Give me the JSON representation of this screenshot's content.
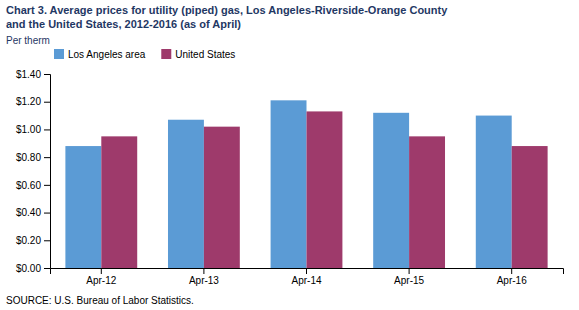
{
  "chart_data": {
    "type": "bar",
    "title": "Chart 3. Average prices for utility (piped) gas, Los Angeles-Riverside-Orange County",
    "subtitle": "and the United States, 2012-2016 (as of April)",
    "y_label": "Per therm",
    "source": "SOURCE: U.S. Bureau of Labor Statistics.",
    "categories": [
      "Apr-12",
      "Apr-13",
      "Apr-14",
      "Apr-15",
      "Apr-16"
    ],
    "series": [
      {
        "name": "Los Angeles area",
        "color": "#5B9BD5",
        "values": [
          0.88,
          1.07,
          1.21,
          1.12,
          1.1
        ]
      },
      {
        "name": "United States",
        "color": "#9E3A6B",
        "values": [
          0.95,
          1.02,
          1.13,
          0.95,
          0.88
        ]
      }
    ],
    "ylim": [
      0,
      1.4
    ],
    "yticks": [
      {
        "value": 0.0,
        "label": "$0.00"
      },
      {
        "value": 0.2,
        "label": "$0.20"
      },
      {
        "value": 0.4,
        "label": "$0.40"
      },
      {
        "value": 0.6,
        "label": "$0.60"
      },
      {
        "value": 0.8,
        "label": "$0.80"
      },
      {
        "value": 1.0,
        "label": "$1.00"
      },
      {
        "value": 1.2,
        "label": "$1.20"
      },
      {
        "value": 1.4,
        "label": "$1.40"
      }
    ],
    "grid": false,
    "legend": "upper left",
    "title_color": "#1F3864"
  }
}
